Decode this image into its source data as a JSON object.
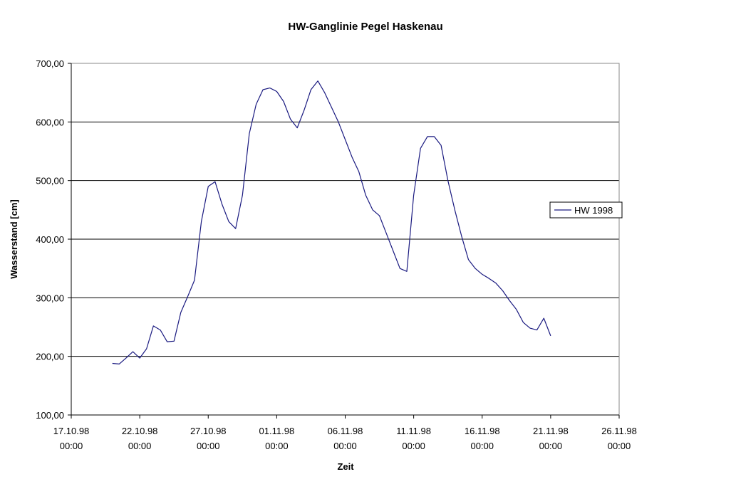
{
  "chart_data": {
    "type": "line",
    "title": "HW-Ganglinie Pegel Haskenau",
    "xlabel": "Zeit",
    "ylabel": "Wasserstand [cm]",
    "ylim": [
      100,
      700
    ],
    "yticks": [
      100,
      200,
      300,
      400,
      500,
      600,
      700
    ],
    "ytick_labels": [
      "100,00",
      "200,00",
      "300,00",
      "400,00",
      "500,00",
      "600,00",
      "700,00"
    ],
    "xlim": [
      "17.10.98 00:00",
      "26.11.98 00:00"
    ],
    "xtick_labels": [
      [
        "17.10.98",
        "00:00"
      ],
      [
        "22.10.98",
        "00:00"
      ],
      [
        "27.10.98",
        "00:00"
      ],
      [
        "01.11.98",
        "00:00"
      ],
      [
        "06.11.98",
        "00:00"
      ],
      [
        "11.11.98",
        "00:00"
      ],
      [
        "16.11.98",
        "00:00"
      ],
      [
        "21.11.98",
        "00:00"
      ],
      [
        "26.11.98",
        "00:00"
      ]
    ],
    "grid": "horizontal",
    "legend": "right",
    "color": "#1a1a80",
    "series": [
      {
        "name": "HW 1998",
        "x": [
          "20.10.98 00:00",
          "20.10.98 12:00",
          "21.10.98 00:00",
          "21.10.98 12:00",
          "22.10.98 00:00",
          "22.10.98 12:00",
          "23.10.98 00:00",
          "23.10.98 12:00",
          "24.10.98 00:00",
          "24.10.98 12:00",
          "25.10.98 00:00",
          "25.10.98 12:00",
          "26.10.98 00:00",
          "26.10.98 12:00",
          "27.10.98 00:00",
          "27.10.98 12:00",
          "28.10.98 00:00",
          "28.10.98 12:00",
          "29.10.98 00:00",
          "29.10.98 12:00",
          "30.10.98 00:00",
          "30.10.98 12:00",
          "31.10.98 00:00",
          "31.10.98 12:00",
          "01.11.98 00:00",
          "01.11.98 12:00",
          "02.11.98 00:00",
          "02.11.98 12:00",
          "03.11.98 00:00",
          "03.11.98 12:00",
          "04.11.98 00:00",
          "04.11.98 12:00",
          "05.11.98 00:00",
          "05.11.98 12:00",
          "06.11.98 00:00",
          "06.11.98 12:00",
          "07.11.98 00:00",
          "07.11.98 12:00",
          "08.11.98 00:00",
          "08.11.98 12:00",
          "09.11.98 00:00",
          "09.11.98 12:00",
          "10.11.98 00:00",
          "10.11.98 12:00",
          "11.11.98 00:00",
          "11.11.98 12:00",
          "12.11.98 00:00",
          "12.11.98 12:00",
          "13.11.98 00:00",
          "13.11.98 12:00",
          "14.11.98 00:00",
          "14.11.98 12:00",
          "15.11.98 00:00",
          "15.11.98 12:00",
          "16.11.98 00:00",
          "16.11.98 12:00",
          "17.11.98 00:00",
          "17.11.98 12:00",
          "18.11.98 00:00",
          "18.11.98 12:00",
          "19.11.98 00:00",
          "19.11.98 12:00",
          "20.11.98 00:00",
          "20.11.98 12:00",
          "21.11.98 00:00"
        ],
        "values": [
          188,
          187,
          197,
          208,
          197,
          213,
          252,
          245,
          225,
          226,
          275,
          302,
          330,
          430,
          490,
          498,
          460,
          430,
          418,
          475,
          580,
          630,
          655,
          658,
          652,
          635,
          605,
          590,
          620,
          655,
          670,
          650,
          625,
          600,
          570,
          540,
          515,
          475,
          450,
          440,
          410,
          380,
          350,
          345,
          475,
          555,
          575,
          575,
          560,
          500,
          450,
          405,
          365,
          350,
          340,
          333,
          325,
          312,
          295,
          280,
          258,
          248,
          245,
          265,
          235
        ]
      }
    ]
  }
}
